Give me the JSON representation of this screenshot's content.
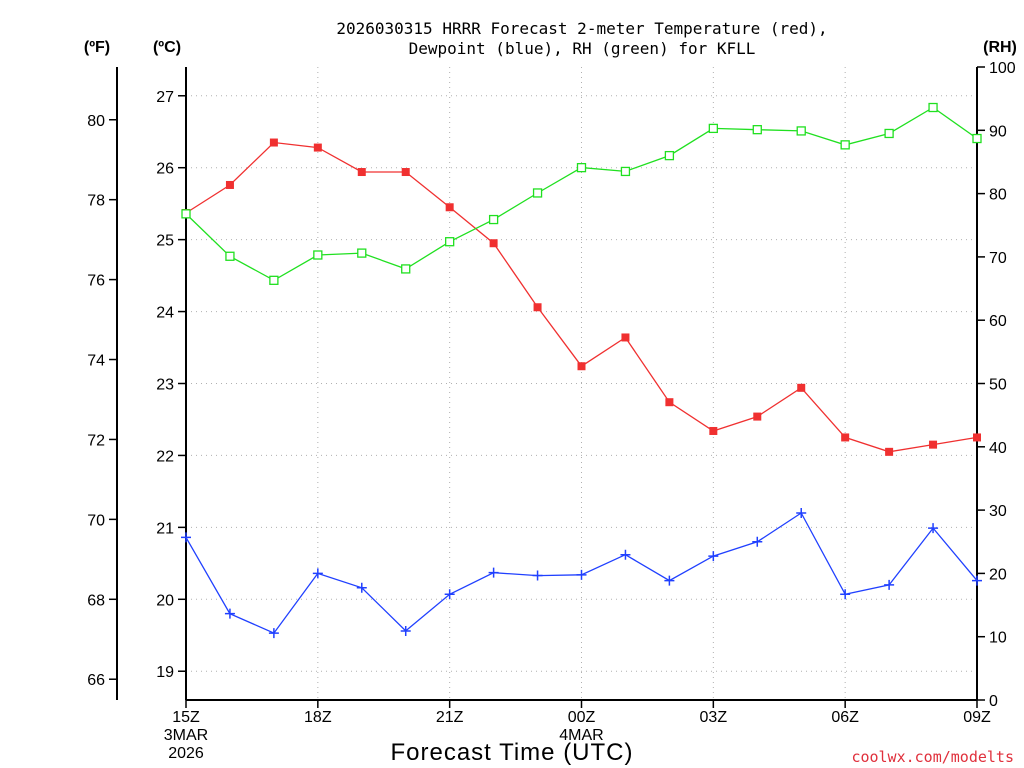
{
  "chart_data": {
    "type": "line",
    "title": "2026030315 HRRR Forecast 2-meter Temperature (red),",
    "subtitle": "Dewpoint (blue), RH (green) for KFLL",
    "xlabel": "Forecast Time (UTC)",
    "left_axis_f_label": "(ºF)",
    "left_axis_c_label": "(ºC)",
    "right_axis_label": "(RH)",
    "credit": "coolwx.com/modelts",
    "credit_color": "#e0303c",
    "x": [
      0,
      1,
      2,
      3,
      4,
      5,
      6,
      7,
      8,
      9,
      10,
      11,
      12,
      13,
      14,
      15,
      16,
      17,
      18
    ],
    "xlim": [
      0,
      18
    ],
    "x_ticks": [
      {
        "x": 0,
        "label": "15Z",
        "sub1": "3MAR",
        "sub2": "2026"
      },
      {
        "x": 3,
        "label": "18Z"
      },
      {
        "x": 6,
        "label": "21Z"
      },
      {
        "x": 9,
        "label": "00Z",
        "sub1": "4MAR"
      },
      {
        "x": 12,
        "label": "03Z"
      },
      {
        "x": 15,
        "label": "06Z"
      },
      {
        "x": 18,
        "label": "09Z"
      }
    ],
    "ylim_c": [
      18.6,
      27.4
    ],
    "ylim_rh": [
      0,
      100
    ],
    "y_ticks_c": [
      "19",
      "20",
      "21",
      "22",
      "23",
      "24",
      "25",
      "26",
      "27"
    ],
    "y_ticks_f": [
      "66",
      "68",
      "70",
      "72",
      "74",
      "76",
      "78",
      "80"
    ],
    "y_ticks_rh": [
      "0",
      "10",
      "20",
      "30",
      "40",
      "50",
      "60",
      "70",
      "80",
      "90",
      "100"
    ],
    "grid": true,
    "series": [
      {
        "name": "Temperature",
        "axis": "C",
        "color": "#f03030",
        "marker": "filled-square",
        "values": [
          25.37,
          25.76,
          26.35,
          26.28,
          25.94,
          25.94,
          25.45,
          24.95,
          24.06,
          23.24,
          23.64,
          22.74,
          22.34,
          22.54,
          22.94,
          22.25,
          22.05,
          22.15,
          22.25
        ]
      },
      {
        "name": "Dewpoint",
        "axis": "C",
        "color": "#2040ff",
        "marker": "plus",
        "values": [
          20.86,
          19.8,
          19.53,
          20.36,
          20.16,
          19.56,
          20.07,
          20.37,
          20.33,
          20.34,
          20.62,
          20.26,
          20.6,
          20.8,
          21.2,
          20.07,
          20.2,
          20.99,
          20.26
        ]
      },
      {
        "name": "RH",
        "axis": "RH",
        "color": "#20e020",
        "marker": "open-square",
        "values": [
          76.8,
          70.1,
          66.3,
          70.3,
          70.6,
          68.1,
          72.4,
          75.9,
          80.1,
          84.1,
          83.5,
          86.0,
          90.3,
          90.1,
          89.9,
          87.7,
          89.5,
          93.6,
          88.7
        ]
      }
    ]
  }
}
